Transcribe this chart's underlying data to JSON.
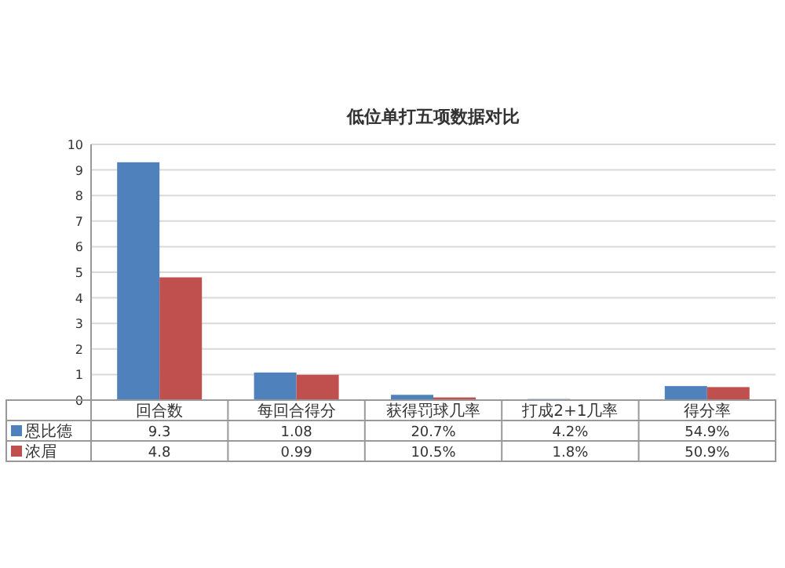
{
  "chart_data": {
    "type": "bar",
    "title": "低位单打五项数据对比",
    "categories": [
      "回合数",
      "每回合得分",
      "获得罚球几率",
      "打成2+1几率",
      "得分率"
    ],
    "series": [
      {
        "name": "恩比德",
        "color": "#4f81bd",
        "values": [
          9.3,
          1.08,
          0.207,
          0.042,
          0.549
        ],
        "value_labels": [
          "9.3",
          "1.08",
          "20.7%",
          "4.2%",
          "54.9%"
        ]
      },
      {
        "name": "浓眉",
        "color": "#c0504d",
        "values": [
          4.8,
          0.99,
          0.105,
          0.018,
          0.509
        ],
        "value_labels": [
          "4.8",
          "0.99",
          "10.5%",
          "1.8%",
          "50.9%"
        ]
      }
    ],
    "ylim": [
      0,
      10
    ],
    "yticks": [
      0,
      1,
      2,
      3,
      4,
      5,
      6,
      7,
      8,
      9,
      10
    ],
    "grid": "y",
    "legend": "bottom"
  }
}
